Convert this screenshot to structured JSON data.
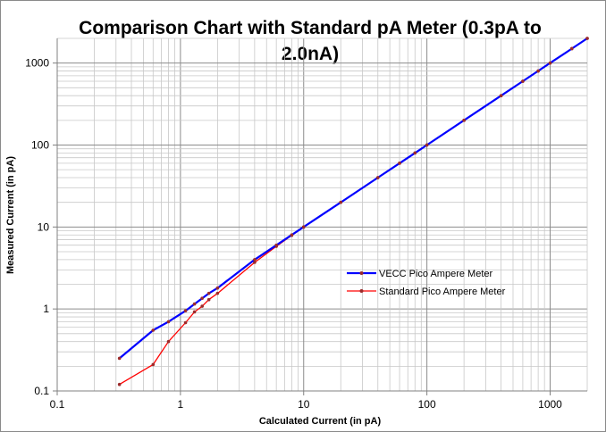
{
  "chart_data": {
    "type": "line",
    "title": "Comparison Chart with Standard pA Meter (0.3pA to 2.0nA)",
    "title_lines": [
      "Comparison Chart with Standard pA Meter (0.3pA to",
      "2.0nA)"
    ],
    "xlabel": "Calculated Current (in pA)",
    "ylabel": "Measured Current (in pA)",
    "x_scale": "log",
    "y_scale": "log",
    "xlim": [
      0.1,
      2000
    ],
    "ylim": [
      0.1,
      2000
    ],
    "x_ticks": [
      0.1,
      1,
      10,
      100,
      1000
    ],
    "x_tick_labels": [
      "0.1",
      "1",
      "10",
      "100",
      "1000"
    ],
    "y_ticks": [
      0.1,
      1,
      10,
      100,
      1000
    ],
    "y_tick_labels": [
      "0.1",
      "1",
      "10",
      "100",
      "1000"
    ],
    "grid": true,
    "legend_position": "right",
    "series": [
      {
        "name": "VECC Pico Ampere Meter",
        "color": "#0000ff",
        "marker_color": "#9b2b2b",
        "x": [
          0.32,
          0.6,
          0.8,
          1.1,
          1.3,
          1.5,
          1.7,
          2.0,
          4,
          6,
          8,
          10,
          20,
          40,
          60,
          80,
          100,
          200,
          400,
          600,
          800,
          1000,
          1500,
          2000
        ],
        "y": [
          0.25,
          0.55,
          0.7,
          0.95,
          1.15,
          1.35,
          1.55,
          1.8,
          4.0,
          6.0,
          8.0,
          10.0,
          20,
          40,
          60,
          80,
          100,
          200,
          400,
          600,
          800,
          1000,
          1500,
          2000
        ]
      },
      {
        "name": "Standard Pico Ampere Meter",
        "color": "#ff0000",
        "marker_color": "#9b2b2b",
        "x": [
          0.32,
          0.6,
          0.8,
          1.1,
          1.3,
          1.5,
          1.7,
          2.0,
          4,
          6,
          8,
          10,
          20,
          40,
          60,
          80,
          100,
          200,
          400,
          600,
          800,
          1000,
          1500,
          2000
        ],
        "y": [
          0.12,
          0.21,
          0.4,
          0.68,
          0.92,
          1.08,
          1.3,
          1.55,
          3.7,
          5.8,
          7.9,
          10.0,
          20,
          40,
          60,
          80,
          100,
          200,
          400,
          600,
          800,
          1000,
          1500,
          2000
        ]
      }
    ]
  }
}
